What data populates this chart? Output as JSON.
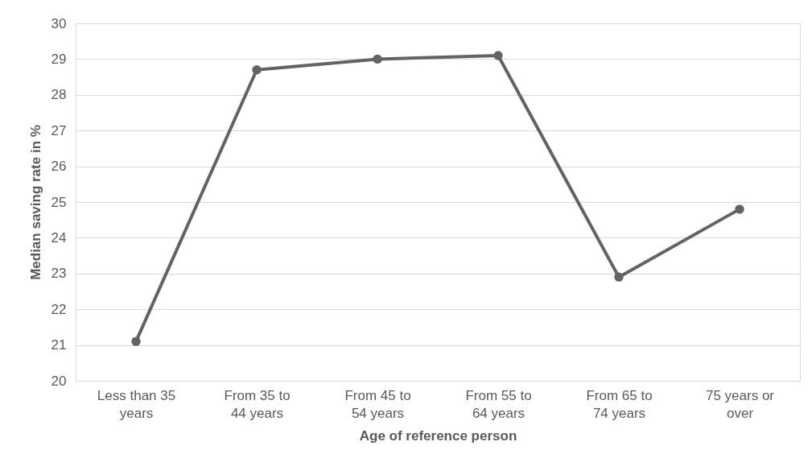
{
  "chart_data": {
    "type": "line",
    "xlabel": "Age of reference person",
    "ylabel": "Median saving rate in %",
    "categories": [
      "Less than 35 years",
      "From 35 to 44 years",
      "From 45 to 54 years",
      "From 55 to 64 years",
      "From 65 to 74 years",
      "75 years or over"
    ],
    "series": [
      {
        "color": "#636363",
        "values": [
          21.1,
          28.7,
          29.0,
          29.1,
          22.9,
          24.8
        ]
      }
    ],
    "ylim": [
      20,
      30
    ],
    "yticks": [
      20,
      21,
      22,
      23,
      24,
      25,
      26,
      27,
      28,
      29,
      30
    ],
    "grid": "y",
    "marker": "circle",
    "line_style": "solid"
  }
}
